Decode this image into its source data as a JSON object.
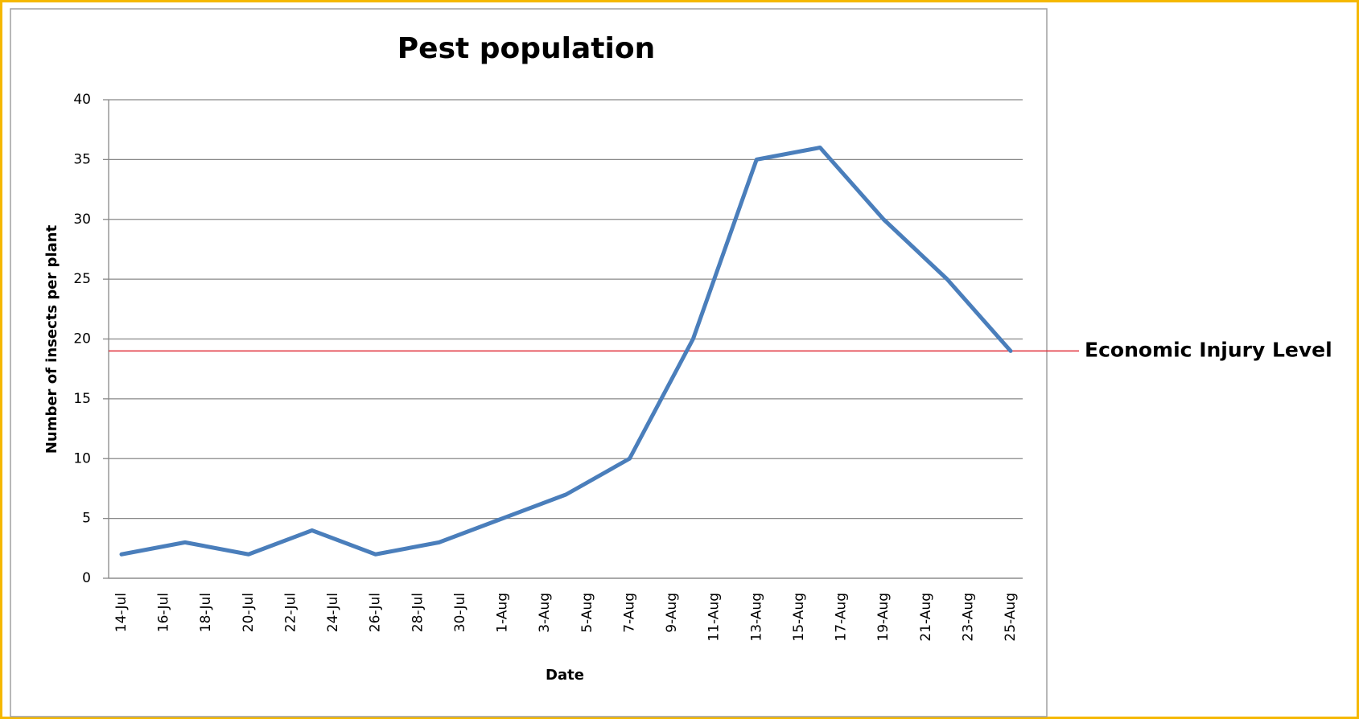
{
  "chart_data": {
    "type": "line",
    "title": "Pest population",
    "x_label": "Date",
    "y_label": "Number of insects per plant",
    "x": [
      "14-Jul",
      "17-Jul",
      "20-Jul",
      "23-Jul",
      "26-Jul",
      "29-Jul",
      "1-Aug",
      "4-Aug",
      "7-Aug",
      "10-Aug",
      "13-Aug",
      "16-Aug",
      "19-Aug",
      "22-Aug",
      "25-Aug"
    ],
    "series": [
      {
        "name": "Pest population",
        "color": "#4a7ebb",
        "values": [
          2,
          3,
          2,
          4,
          2,
          3,
          5,
          7,
          10,
          20,
          35,
          36,
          30,
          25,
          19
        ]
      }
    ],
    "xlim": [
      "14-Jul",
      "25-Aug"
    ],
    "xticks": [
      "14-Jul",
      "16-Jul",
      "18-Jul",
      "20-Jul",
      "22-Jul",
      "24-Jul",
      "26-Jul",
      "28-Jul",
      "30-Jul",
      "1-Aug",
      "3-Aug",
      "5-Aug",
      "7-Aug",
      "9-Aug",
      "11-Aug",
      "13-Aug",
      "15-Aug",
      "17-Aug",
      "19-Aug",
      "21-Aug",
      "23-Aug",
      "25-Aug"
    ],
    "ylim": [
      0,
      40
    ],
    "yticks": [
      0,
      5,
      10,
      15,
      20,
      25,
      30,
      35,
      40
    ],
    "grid": true,
    "threshold": {
      "value": 19,
      "label": "Economic Injury Level",
      "color": "#e0303a"
    }
  }
}
